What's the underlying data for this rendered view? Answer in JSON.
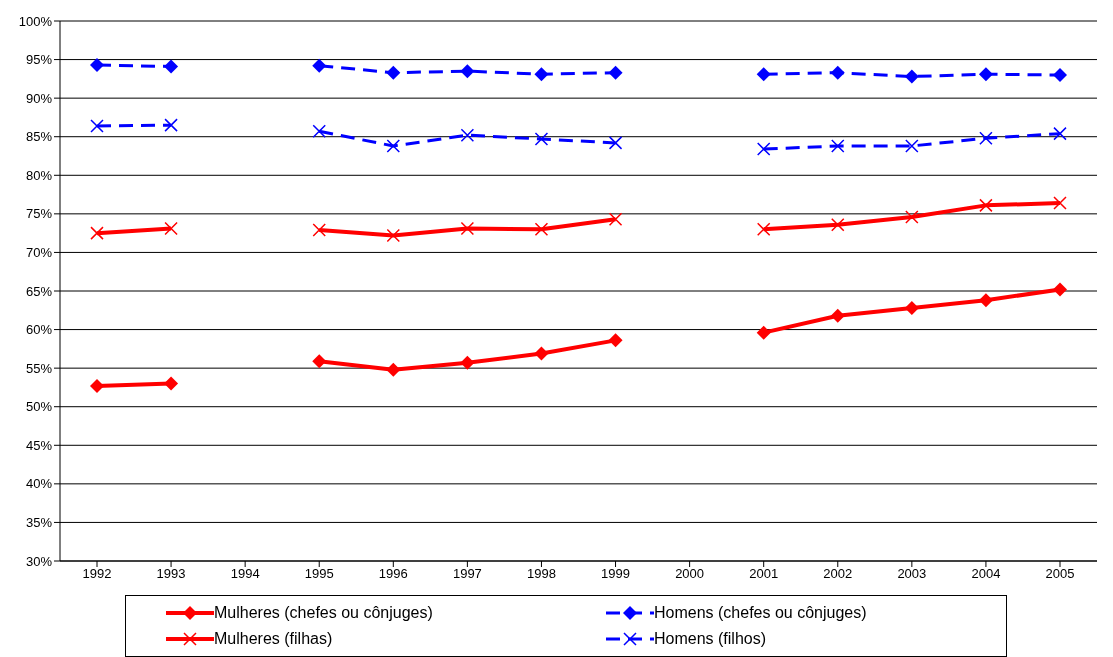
{
  "chart_data": {
    "type": "line",
    "categories": [
      "1992",
      "1993",
      "1994",
      "1995",
      "1996",
      "1997",
      "1998",
      "1999",
      "2000",
      "2001",
      "2002",
      "2003",
      "2004",
      "2005"
    ],
    "ylim": [
      30,
      100
    ],
    "yticks": [
      {
        "value": 30,
        "label": "30%"
      },
      {
        "value": 35,
        "label": "35%"
      },
      {
        "value": 40,
        "label": "40%"
      },
      {
        "value": 45,
        "label": "45%"
      },
      {
        "value": 50,
        "label": "50%"
      },
      {
        "value": 55,
        "label": "55%"
      },
      {
        "value": 60,
        "label": "60%"
      },
      {
        "value": 65,
        "label": "65%"
      },
      {
        "value": 70,
        "label": "70%"
      },
      {
        "value": 75,
        "label": "75%"
      },
      {
        "value": 80,
        "label": "80%"
      },
      {
        "value": 85,
        "label": "85%"
      },
      {
        "value": 90,
        "label": "90%"
      },
      {
        "value": 95,
        "label": "95%"
      },
      {
        "value": 100,
        "label": "100%"
      }
    ],
    "grid": "y",
    "legend": "bottom",
    "series": [
      {
        "name": "Mulheres (chefes ou cônjuges)",
        "color": "#ff0000",
        "marker": "diamond",
        "line_style": "solid",
        "values": [
          52.7,
          53.0,
          null,
          55.9,
          54.8,
          55.7,
          56.9,
          58.6,
          null,
          59.6,
          61.8,
          62.8,
          63.8,
          65.2
        ]
      },
      {
        "name": "Homens (chefes ou cônjuges)",
        "color": "#0000ff",
        "marker": "diamond",
        "line_style": "dashed",
        "values": [
          94.3,
          94.1,
          null,
          94.2,
          93.3,
          93.5,
          93.1,
          93.3,
          null,
          93.1,
          93.3,
          92.8,
          93.1,
          93.0
        ]
      },
      {
        "name": "Mulheres (filhas)",
        "color": "#ff0000",
        "marker": "cross",
        "line_style": "solid",
        "values": [
          72.5,
          73.1,
          null,
          72.9,
          72.2,
          73.1,
          73.0,
          74.3,
          null,
          73.0,
          73.6,
          74.6,
          76.1,
          76.4
        ]
      },
      {
        "name": "Homens (filhos)",
        "color": "#0000ff",
        "marker": "cross",
        "line_style": "dashed",
        "values": [
          86.4,
          86.5,
          null,
          85.7,
          83.8,
          85.2,
          84.7,
          84.2,
          null,
          83.4,
          83.8,
          83.8,
          84.8,
          85.4
        ]
      }
    ]
  }
}
